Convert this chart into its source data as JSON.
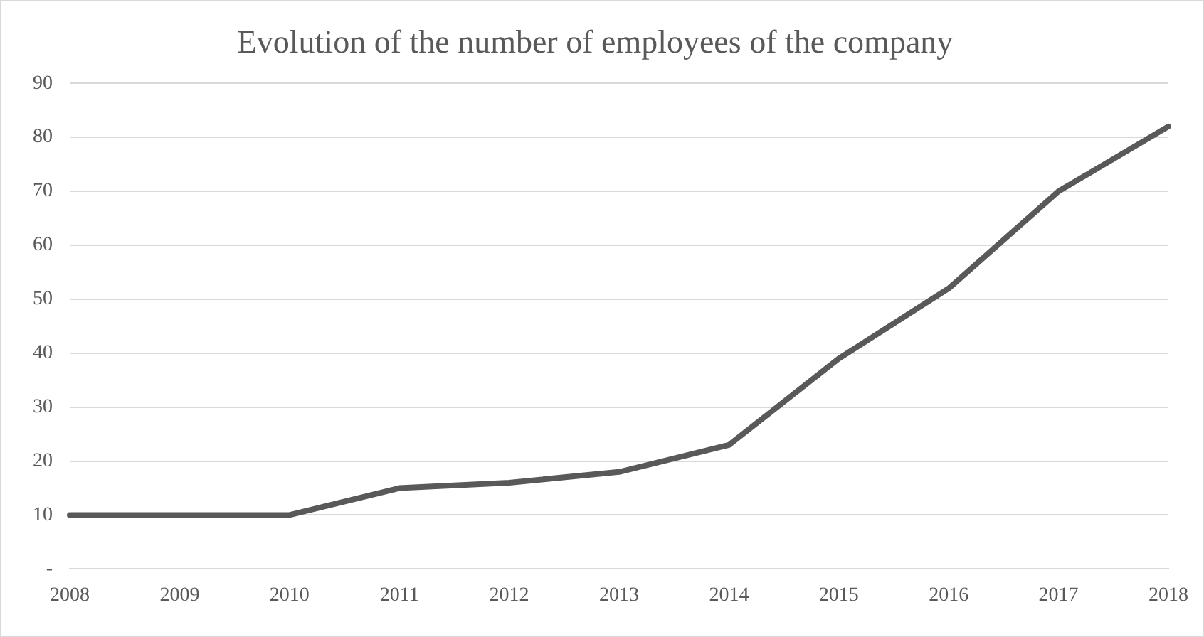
{
  "chart_data": {
    "type": "line",
    "title": "Evolution of the number of employees of the company",
    "categories": [
      "2008",
      "2009",
      "2010",
      "2011",
      "2012",
      "2013",
      "2014",
      "2015",
      "2016",
      "2017",
      "2018"
    ],
    "series": [
      {
        "color": "#595959",
        "values": [
          10,
          10,
          10,
          15,
          16,
          18,
          23,
          39,
          52,
          70,
          82
        ]
      }
    ],
    "ylim": [
      0,
      90
    ],
    "yticks": [
      {
        "value": 0,
        "label": "-"
      },
      10,
      20,
      30,
      40,
      50,
      60,
      70,
      80,
      90
    ],
    "grid": "y",
    "legend": false,
    "marker": "none",
    "line_style": "solid"
  }
}
